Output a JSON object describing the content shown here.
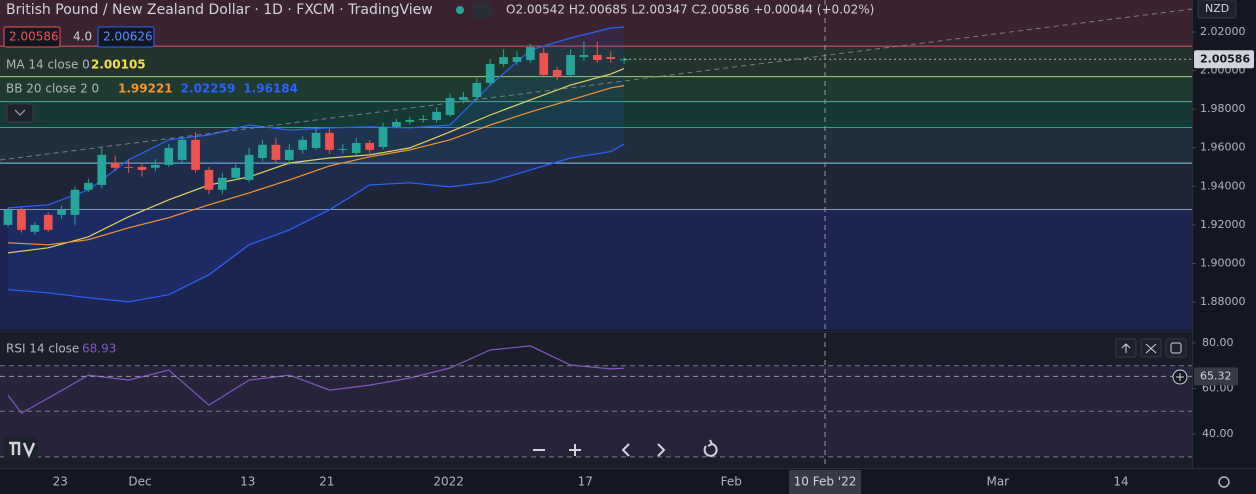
{
  "header": {
    "bid": "2.00586",
    "spread": "4.0",
    "ask": "2.00626",
    "currency": "NZD"
  },
  "chart_data": [
    {
      "type": "candlestick",
      "title": "British Pound / New Zealand Dollar · 1D · FXCM · TradingView",
      "ohlc_label": "O2.00542 H2.00685 L2.00347 C2.00586 +0.00044 (+0.02%)",
      "up_color": "#26a69a",
      "down_color": "#ef5350",
      "open": [
        1.92,
        1.9278,
        1.9164,
        1.9252,
        1.9252,
        1.9252,
        1.9382,
        1.9407,
        1.9521,
        1.9501,
        1.9501,
        1.9496,
        1.9511,
        1.9537,
        1.9641,
        1.9485,
        1.9382,
        1.9444,
        1.9433,
        1.9547,
        1.9615,
        1.9537,
        1.9589,
        1.9599,
        1.9677,
        1.9589,
        1.9573,
        1.9625,
        1.9604,
        1.9708,
        1.9734,
        1.9744,
        1.9744,
        1.977,
        1.9848,
        1.9863,
        1.9936,
        2.0034,
        2.0045,
        2.0055,
        2.0091,
        2.0003,
        1.9977,
        2.007,
        2.0081,
        2.007,
        2.00542
      ],
      "high": [
        1.929,
        1.929,
        1.9215,
        1.9265,
        1.93,
        1.94,
        1.944,
        1.96,
        1.956,
        1.954,
        1.952,
        1.954,
        1.962,
        1.966,
        1.968,
        1.95,
        1.947,
        1.952,
        1.96,
        1.964,
        1.965,
        1.962,
        1.966,
        1.97,
        1.97,
        1.962,
        1.965,
        1.964,
        1.973,
        1.975,
        1.976,
        1.977,
        1.981,
        1.988,
        1.989,
        1.996,
        2.006,
        2.011,
        2.01,
        2.014,
        2.012,
        2.002,
        2.011,
        2.015,
        2.015,
        2.01,
        2.00685
      ],
      "low": [
        1.919,
        1.916,
        1.915,
        1.9164,
        1.923,
        1.92,
        1.937,
        1.939,
        1.948,
        1.947,
        1.945,
        1.948,
        1.95,
        1.952,
        1.947,
        1.936,
        1.936,
        1.943,
        1.942,
        1.953,
        1.952,
        1.951,
        1.957,
        1.959,
        1.957,
        1.957,
        1.956,
        1.957,
        1.959,
        1.97,
        1.972,
        1.973,
        1.973,
        1.976,
        1.983,
        1.985,
        1.992,
        2.002,
        2.003,
        2.004,
        1.997,
        1.995,
        1.997,
        2.005,
        2.004,
        2.004,
        2.00347
      ],
      "close": [
        1.9278,
        1.9174,
        1.92,
        1.9174,
        1.9278,
        1.9382,
        1.9418,
        1.9563,
        1.9496,
        1.9496,
        1.9485,
        1.9511,
        1.9599,
        1.9641,
        1.9485,
        1.9382,
        1.9444,
        1.9496,
        1.9563,
        1.9615,
        1.9537,
        1.9589,
        1.9641,
        1.9677,
        1.9589,
        1.9594,
        1.9625,
        1.9589,
        1.9708,
        1.9734,
        1.9744,
        1.9749,
        1.9786,
        1.9858,
        1.9863,
        1.9936,
        2.0034,
        2.007,
        2.007,
        2.0122,
        1.9977,
        1.9967,
        2.0081,
        2.0081,
        2.0055,
        2.006,
        2.00586
      ],
      "last_price_label": "2.00586",
      "indicators": [
        {
          "name": "MA 14 close 0",
          "value_labels": [
            "2.00105"
          ],
          "lines": [
            {
              "color": "#f5e04a",
              "x": [
                0,
                3,
                6,
                9,
                12,
                15,
                18,
                21,
                24,
                27,
                30,
                33,
                36,
                39,
                42,
                45,
                46
              ],
              "values": [
                1.9055,
                1.9081,
                1.9138,
                1.9242,
                1.933,
                1.9407,
                1.9449,
                1.9521,
                1.9547,
                1.9563,
                1.9599,
                1.9682,
                1.977,
                1.9848,
                1.9925,
                1.9982,
                2.00105
              ]
            }
          ]
        },
        {
          "name": "BB 20 close 2 0",
          "value_labels": [
            "1.99221",
            "2.02259",
            "1.96184"
          ],
          "lines": [
            {
              "color": "#f7932f",
              "x": [
                0,
                3,
                6,
                9,
                12,
                15,
                18,
                21,
                24,
                27,
                30,
                33,
                36,
                39,
                42,
                45,
                46
              ],
              "values": [
                1.9107,
                1.9097,
                1.9123,
                1.9185,
                1.9237,
                1.9304,
                1.9366,
                1.9433,
                1.9506,
                1.9553,
                1.9589,
                1.9641,
                1.9718,
                1.9786,
                1.9848,
                1.991,
                1.99221
              ]
            },
            {
              "color": "#2962ff",
              "x": [
                0,
                3,
                6,
                9,
                12,
                15,
                18,
                21,
                24,
                27,
                30,
                33,
                36,
                39,
                42,
                45,
                46
              ],
              "values": [
                1.9288,
                1.9304,
                1.9382,
                1.9537,
                1.9641,
                1.9666,
                1.9718,
                1.9692,
                1.9703,
                1.9708,
                1.9703,
                1.9718,
                1.9925,
                2.0107,
                2.0169,
                2.0221,
                2.02259
              ]
            },
            {
              "color": "#2962ff",
              "x": [
                0,
                3,
                6,
                9,
                12,
                15,
                18,
                21,
                24,
                27,
                30,
                33,
                36,
                39,
                42,
                45,
                46
              ],
              "values": [
                1.8864,
                1.8848,
                1.8822,
                1.8801,
                1.8838,
                1.8941,
                1.9097,
                1.9174,
                1.9278,
                1.9407,
                1.9418,
                1.9397,
                1.9423,
                1.9485,
                1.9547,
                1.958,
                1.96184
              ]
            }
          ],
          "fill_color": "rgba(41,98,255,0.10)"
        }
      ],
      "levels": [
        2.0127,
        1.9969,
        1.9839,
        1.9705,
        1.952,
        1.928
      ],
      "level_colors": [
        "#e05561",
        "#9bd36a",
        "#4caf8f",
        "#26a69a",
        "#82c8e5",
        "#8c9bb5"
      ],
      "band_colors": [
        "#3b2230",
        "#22322d",
        "#1e3a31",
        "#163936",
        "#1f2f3d",
        "#1d2536",
        "#1b2550"
      ],
      "xlim": [
        -0.6,
        88.4
      ],
      "ylim": [
        1.8655,
        2.0366
      ],
      "yticks": [
        {
          "value": 2.02,
          "label": "2.02000"
        },
        {
          "value": 2.0,
          "label": "2.00000"
        },
        {
          "value": 1.98,
          "label": "1.98000"
        },
        {
          "value": 1.96,
          "label": "1.96000"
        },
        {
          "value": 1.94,
          "label": "1.94000"
        },
        {
          "value": 1.92,
          "label": "1.92000"
        },
        {
          "value": 1.9,
          "label": "1.90000"
        },
        {
          "value": 1.88,
          "label": "1.88000"
        }
      ],
      "xticks": [
        {
          "value": 3.9,
          "label": "23"
        },
        {
          "value": 9.85,
          "label": "Dec"
        },
        {
          "value": 17.9,
          "label": "13"
        },
        {
          "value": 23.8,
          "label": "21"
        },
        {
          "value": 32.9,
          "label": "2022"
        },
        {
          "value": 43.1,
          "label": "17"
        },
        {
          "value": 54,
          "label": "Feb"
        },
        {
          "value": 73.9,
          "label": "Mar"
        },
        {
          "value": 83.1,
          "label": "14"
        }
      ],
      "crosshair": {
        "value": 61,
        "label": "10 Feb '22"
      }
    },
    {
      "type": "line",
      "name": "RSI 14 close",
      "value_label": "68.93",
      "color": "#7e57c2",
      "x": [
        0,
        1,
        3,
        6,
        9,
        12,
        15,
        18,
        21,
        24,
        27,
        30,
        33,
        36,
        39,
        42,
        45,
        46
      ],
      "values": [
        57.1,
        49.2,
        55.8,
        65.9,
        63.7,
        68.1,
        52.7,
        63.7,
        65.9,
        59.3,
        61.5,
        64.6,
        69.0,
        76.9,
        78.7,
        70.3,
        68.6,
        68.93
      ],
      "xlim": [
        -0.6,
        88.4
      ],
      "ylim": [
        25.1,
        84.8
      ],
      "yticks": [
        {
          "value": 80,
          "label": "80.00"
        },
        {
          "value": 60,
          "label": "60.00"
        },
        {
          "value": 40,
          "label": "40.00"
        }
      ],
      "levels": [
        70,
        50,
        30
      ],
      "band_color": "rgba(126,87,194,0.10)",
      "crosshair": 65.32
    }
  ]
}
